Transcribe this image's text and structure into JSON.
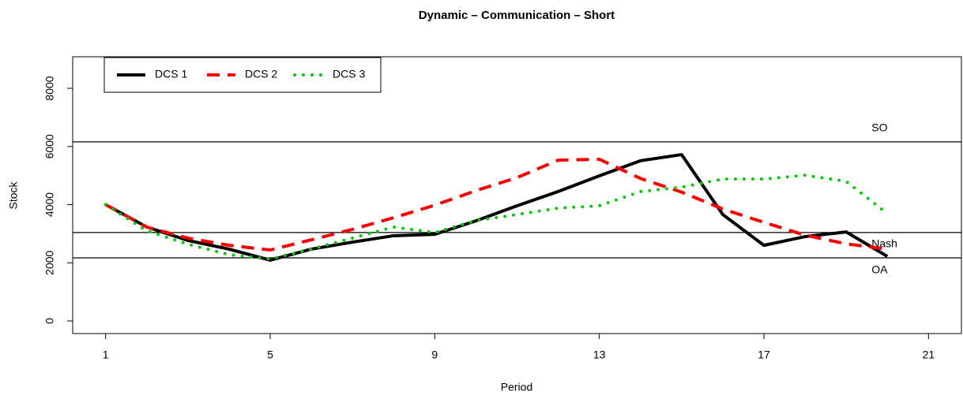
{
  "chart_data": {
    "type": "line",
    "title": "Dynamic  – Communication – Short",
    "x_label": "Period",
    "y_label": "Stock",
    "x": [
      1,
      2,
      3,
      4,
      5,
      6,
      7,
      8,
      9,
      10,
      11,
      12,
      13,
      14,
      15,
      16,
      17,
      18,
      19,
      20
    ],
    "series": [
      {
        "name": "DCS 1",
        "color": "#000000",
        "dash": "solid",
        "values": [
          4000,
          3230,
          2770,
          2470,
          2090,
          2470,
          2710,
          2930,
          2980,
          3440,
          3960,
          4450,
          4990,
          5510,
          5720,
          3660,
          2600,
          2900,
          3060,
          2220
        ]
      },
      {
        "name": "DCS 2",
        "color": "#ff0000",
        "dash": "dashed",
        "values": [
          4000,
          3230,
          2850,
          2600,
          2440,
          2790,
          3150,
          3550,
          3980,
          4480,
          4930,
          5530,
          5560,
          4900,
          4430,
          3850,
          3390,
          2950,
          2650,
          2470
        ]
      },
      {
        "name": "DCS 3",
        "color": "#00cd00",
        "dash": "dotted",
        "values": [
          4000,
          3100,
          2640,
          2280,
          2130,
          2470,
          2850,
          3230,
          3040,
          3450,
          3660,
          3880,
          3960,
          4450,
          4600,
          4880,
          4880,
          5010,
          4800,
          3690
        ]
      }
    ],
    "reference_lines": [
      {
        "label": "SO",
        "value": 6160
      },
      {
        "label": "Nash",
        "value": 3040
      },
      {
        "label": "OA",
        "value": 2170
      }
    ],
    "xlim": [
      0.2,
      21.8
    ],
    "xticks": [
      1,
      5,
      9,
      13,
      17,
      21
    ],
    "ylim": [
      -434,
      9085
    ],
    "yticks": [
      0,
      2000,
      4000,
      6000,
      8000
    ],
    "legend": "top-left"
  }
}
